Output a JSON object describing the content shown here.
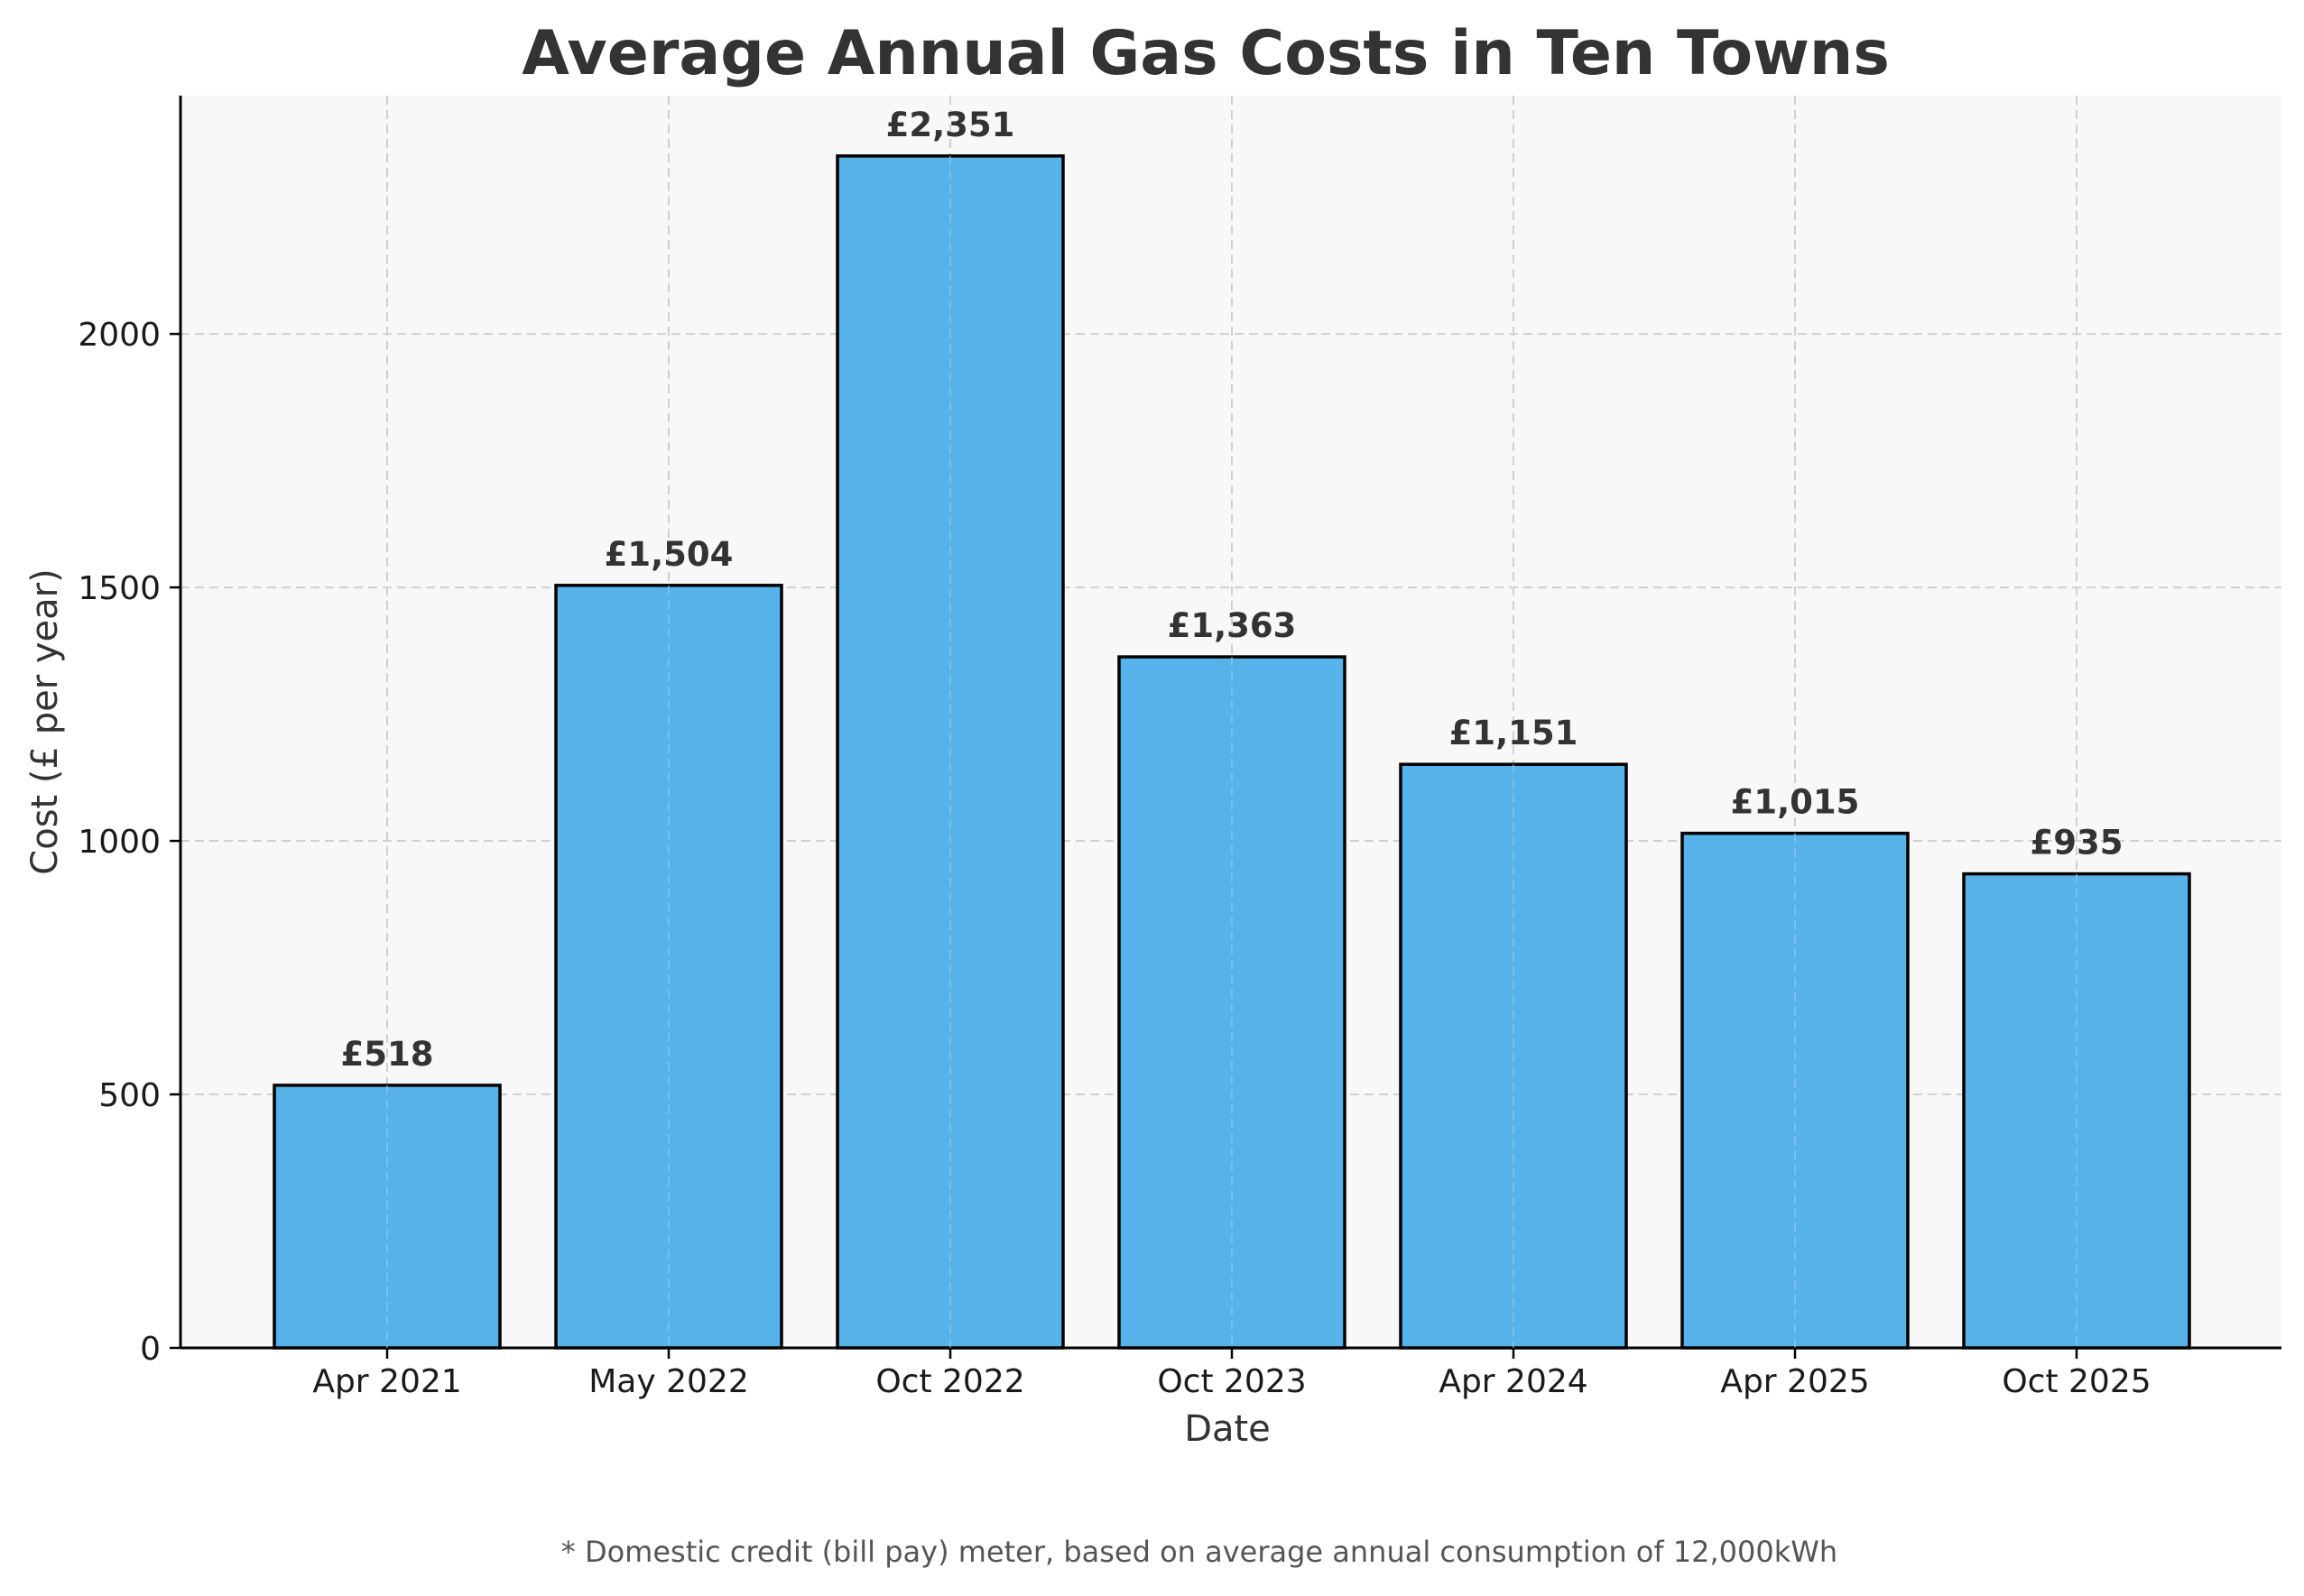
{
  "chart_data": {
    "type": "bar",
    "title": "Average Annual Gas Costs in Ten Towns",
    "xlabel": "Date",
    "ylabel": "Cost (£ per year)",
    "categories": [
      "Apr 2021",
      "May 2022",
      "Oct 2022",
      "Oct 2023",
      "Apr 2024",
      "Apr 2025",
      "Oct 2025"
    ],
    "values": [
      518,
      1504,
      2351,
      1363,
      1151,
      1015,
      935
    ],
    "value_labels": [
      "£518",
      "£1,504",
      "£2,351",
      "£1,363",
      "£1,151",
      "£1,015",
      "£935"
    ],
    "ylim": [
      0,
      2470
    ],
    "yticks": [
      0,
      500,
      1000,
      1500,
      2000
    ],
    "grid": true,
    "colors": {
      "bar_fill": "#56b2e8",
      "bar_edge": "#000000",
      "plot_background": "#f8f8f8",
      "grid": "#d0d0d0"
    },
    "footnote": "* Domestic credit (bill pay) meter, based on average annual consumption of 12,000kWh"
  }
}
